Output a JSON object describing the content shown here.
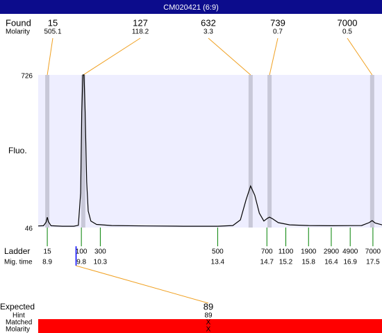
{
  "title": "CM020421 (6:9)",
  "found": {
    "label": "Found",
    "molarity_label": "Molarity",
    "peaks": [
      {
        "size": 15,
        "molarity": 505.1,
        "time": 8.9
      },
      {
        "size": 127,
        "molarity": 118.2,
        "time": 9.85
      },
      {
        "size": 632,
        "molarity": 3.3,
        "time": 14.27
      },
      {
        "size": 739,
        "molarity": 0.7,
        "time": 14.77
      },
      {
        "size": 7000,
        "molarity": 0.5,
        "time": 17.48
      }
    ]
  },
  "plot": {
    "y_label": "Fluo.",
    "xlim": [
      8.66,
      17.74
    ],
    "ylim": [
      46,
      726
    ],
    "yticks": [
      46,
      726
    ],
    "trace": {
      "x": [
        8.66,
        8.8,
        8.87,
        8.9,
        8.93,
        9.0,
        9.3,
        9.6,
        9.72,
        9.78,
        9.81,
        9.84,
        9.87,
        9.9,
        9.94,
        9.98,
        10.05,
        10.2,
        10.6,
        11.5,
        12.5,
        13.4,
        13.8,
        14.0,
        14.15,
        14.27,
        14.38,
        14.5,
        14.62,
        14.72,
        14.77,
        14.85,
        15.0,
        15.3,
        15.8,
        16.4,
        17.2,
        17.4,
        17.48,
        17.56,
        17.74
      ],
      "y": [
        53,
        54,
        70,
        92,
        72,
        54,
        52,
        52,
        56,
        200,
        560,
        726,
        726,
        560,
        250,
        120,
        75,
        60,
        55,
        53,
        52,
        52,
        55,
        80,
        170,
        231,
        190,
        110,
        75,
        88,
        92,
        85,
        68,
        58,
        55,
        54,
        55,
        68,
        77,
        66,
        58
      ]
    }
  },
  "ladder": {
    "label": "Ladder",
    "time_label": "Mig. time",
    "sizes": [
      15,
      100,
      300,
      500,
      700,
      1100,
      1900,
      2900,
      4900,
      7000
    ],
    "times": [
      8.9,
      9.8,
      10.3,
      13.4,
      14.7,
      15.2,
      15.8,
      16.4,
      16.9,
      17.5
    ]
  },
  "expected": {
    "label": "Expected",
    "value": 89,
    "time": 9.66,
    "hint_label": "Hint",
    "hint": 89,
    "matched_label": "Matched",
    "matched": "X",
    "molarity_label": "Molarity",
    "molarity": "X"
  }
}
